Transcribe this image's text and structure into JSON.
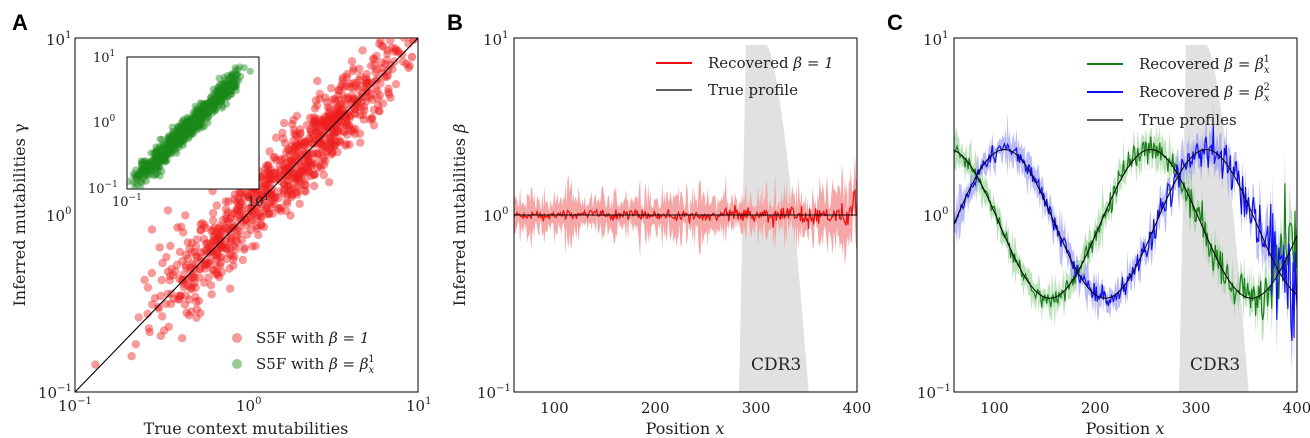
{
  "chart_data": [
    {
      "panel": "A",
      "type": "scatter",
      "xlabel": "True context mutabilities",
      "ylabel": "Inferred mutabilities γ",
      "xscale": "log",
      "yscale": "log",
      "xlim": [
        0.1,
        10
      ],
      "ylim": [
        0.1,
        10
      ],
      "ticks": [
        "10",
        "10",
        "10"
      ],
      "tick_exponents": [
        "−1",
        "0",
        "1"
      ],
      "diagonal": true,
      "legend_position": "lower-right",
      "series": [
        {
          "name_prefix": "S5F with ",
          "name_math": "β = 1",
          "color": "#f02020",
          "alpha": 0.45,
          "n": 900,
          "spread": 0.11,
          "trend": "diagonal"
        },
        {
          "name_prefix": "S5F with ",
          "name_math": "β = β",
          "name_sub": "x",
          "name_sup": "1",
          "color": "#1a8a1a",
          "alpha": 0.45,
          "n": 700,
          "spread": 0.08,
          "trend": "diagonal",
          "in_inset": true
        }
      ],
      "inset": {
        "xlim": [
          0.1,
          10
        ],
        "ylim": [
          0.1,
          10
        ],
        "xscale": "log",
        "yscale": "log"
      }
    },
    {
      "panel": "B",
      "type": "line",
      "xlabel": "Position x",
      "ylabel": "Inferred mutabilities β",
      "xlim": [
        60,
        400
      ],
      "ylim": [
        0.1,
        10
      ],
      "yscale": "log",
      "xticks": [
        100,
        200,
        300,
        400
      ],
      "background_label": "CDR3",
      "background_color": "#e1e1e1",
      "legend_position": "top-right",
      "series": [
        {
          "name_prefix": "Recovered ",
          "name_math": "β = 1",
          "color": "#ee1111",
          "value": 1,
          "noise": "increasing"
        },
        {
          "name": "True profile",
          "color": "#000000",
          "value": 1
        }
      ]
    },
    {
      "panel": "C",
      "type": "line",
      "xlabel": "Position x",
      "ylabel": "",
      "xlim": [
        60,
        400
      ],
      "ylim": [
        0.1,
        10
      ],
      "yscale": "log",
      "xticks": [
        100,
        200,
        300,
        400
      ],
      "background_label": "CDR3",
      "background_color": "#e1e1e1",
      "legend_position": "top-right",
      "series": [
        {
          "name_prefix": "Recovered ",
          "name_math": "β = β",
          "name_sub": "x",
          "name_sup": "1",
          "color": "#1a7f1a",
          "log10_amp": 0.42,
          "period": 200,
          "peak_x": 55,
          "log10_mid": -0.05
        },
        {
          "name_prefix": "Recovered ",
          "name_math": "β = β",
          "name_sub": "x",
          "name_sup": "2",
          "color": "#1010ee",
          "log10_amp": 0.42,
          "period": 200,
          "peak_x": 110,
          "log10_mid": -0.05
        },
        {
          "name": "True profiles",
          "color": "#000000"
        }
      ]
    }
  ],
  "panel_labels": [
    "A",
    "B",
    "C"
  ]
}
